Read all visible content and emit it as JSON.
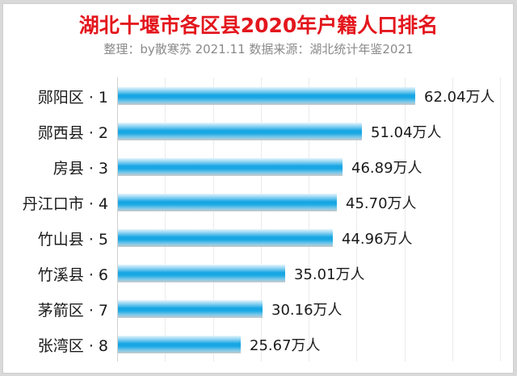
{
  "header": {
    "title": "湖北十堰市各区县2020年户籍人口排名",
    "subtitle": "整理：by散寒苏  2021.11  数据来源：湖北统计年鉴2021"
  },
  "colors": {
    "title": "#e3161d",
    "bar": "#16a6e3",
    "subtitle": "#8a8a8a"
  },
  "chart_data": {
    "type": "bar",
    "orientation": "horizontal",
    "title": "湖北十堰市各区县2020年户籍人口排名",
    "subtitle": "整理：by散寒苏  2021.11  数据来源：湖北统计年鉴2021",
    "categories": [
      "郧阳区 · 1",
      "郧西县 · 2",
      "房县 · 3",
      "丹江口市 · 4",
      "竹山县 · 5",
      "竹溪县 · 6",
      "茅箭区 · 7",
      "张湾区 · 8"
    ],
    "values": [
      62.04,
      51.04,
      46.89,
      45.7,
      44.96,
      35.01,
      30.16,
      25.67
    ],
    "value_labels": [
      "62.04万人",
      "51.04万人",
      "46.89万人",
      "45.70万人",
      "44.96万人",
      "35.01万人",
      "30.16万人",
      "25.67万人"
    ],
    "unit": "万人",
    "xlabel": "",
    "ylabel": "",
    "xlim": [
      0,
      80
    ],
    "grid": true,
    "grid_step": 10,
    "legend": "none"
  }
}
